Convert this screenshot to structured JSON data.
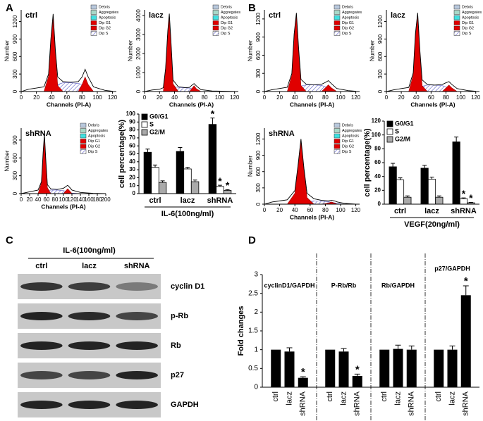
{
  "panels": [
    "A",
    "B",
    "C",
    "D"
  ],
  "chart_data": [
    {
      "type": "flow",
      "title": "ctrl",
      "xlabel": "Channels (PI-A)",
      "ylabel": "Number",
      "xlim": [
        0,
        125
      ],
      "xticks": [
        0,
        20,
        40,
        60,
        80,
        100,
        120
      ],
      "ylim": [
        0,
        1400
      ],
      "yticks": [
        0,
        300,
        600,
        900,
        1200
      ],
      "legend": [
        {
          "name": "Debris",
          "color": "#b8c8dc"
        },
        {
          "name": "Aggregates",
          "color": "#a8d8c8"
        },
        {
          "name": "Apoptosis",
          "color": "#40e0e0"
        },
        {
          "name": "Dip G1",
          "color": "#e00000"
        },
        {
          "name": "Dip G2",
          "color": "#e00000"
        },
        {
          "name": "Dip S",
          "color": "#6a6ad0"
        }
      ],
      "x": [
        0,
        10,
        20,
        30,
        36,
        39,
        42,
        45,
        48,
        55,
        65,
        75,
        80,
        84,
        88,
        95,
        110,
        120
      ],
      "total": [
        0,
        40,
        60,
        80,
        300,
        900,
        1330,
        700,
        250,
        170,
        160,
        170,
        250,
        380,
        250,
        80,
        20,
        5
      ],
      "g1": [
        null,
        null,
        null,
        0,
        260,
        850,
        1250,
        650,
        100,
        0,
        null,
        null,
        null,
        null,
        null,
        null,
        null,
        null
      ],
      "g2": [
        null,
        null,
        null,
        null,
        null,
        null,
        null,
        null,
        null,
        null,
        null,
        0,
        120,
        250,
        120,
        0,
        null,
        null
      ],
      "s": [
        null,
        null,
        null,
        null,
        null,
        0,
        40,
        80,
        120,
        150,
        150,
        140,
        120,
        80,
        30,
        0,
        null,
        null
      ]
    },
    {
      "type": "flow",
      "title": "lacz",
      "xlabel": "Channels (PI-A)",
      "ylabel": "Number",
      "xlim": [
        0,
        125
      ],
      "xticks": [
        0,
        20,
        40,
        60,
        80,
        100,
        120
      ],
      "ylim": [
        0,
        4300
      ],
      "yticks": [
        0,
        1000,
        2000,
        3000,
        4000
      ],
      "legend": [
        {
          "name": "Debris",
          "color": "#b8c8dc"
        },
        {
          "name": "Aggregates",
          "color": "#a8d8c8"
        },
        {
          "name": "Apoptosis",
          "color": "#40e0e0"
        },
        {
          "name": "Dip G1",
          "color": "#e00000"
        },
        {
          "name": "Dip G2",
          "color": "#e00000"
        },
        {
          "name": "Dip S",
          "color": "#6a6ad0"
        }
      ],
      "x": [
        0,
        10,
        20,
        25,
        28,
        31,
        33,
        35,
        38,
        45,
        55,
        60,
        63,
        66,
        69,
        75,
        90,
        120
      ],
      "total": [
        0,
        80,
        120,
        200,
        1200,
        3200,
        4100,
        2800,
        600,
        250,
        200,
        220,
        330,
        420,
        300,
        100,
        30,
        5
      ],
      "g1": [
        null,
        null,
        null,
        0,
        1100,
        3100,
        4000,
        2700,
        400,
        0,
        null,
        null,
        null,
        null,
        null,
        null,
        null,
        null
      ],
      "g2": [
        null,
        null,
        null,
        null,
        null,
        null,
        null,
        null,
        null,
        null,
        null,
        0,
        150,
        300,
        150,
        0,
        null,
        null
      ],
      "s": [
        null,
        null,
        null,
        null,
        null,
        0,
        100,
        200,
        250,
        220,
        190,
        180,
        150,
        100,
        50,
        0,
        null,
        null
      ]
    },
    {
      "type": "flow",
      "title": "shRNA",
      "xlabel": "Channels (PI-A)",
      "ylabel": "Number",
      "xlim": [
        0,
        200
      ],
      "xticks": [
        0,
        20,
        40,
        60,
        80,
        100,
        120,
        140,
        160,
        180,
        200
      ],
      "ylim": [
        0,
        1100
      ],
      "yticks": [
        0,
        300,
        600,
        900
      ],
      "legend": [
        {
          "name": "Debris",
          "color": "#b8c8dc"
        },
        {
          "name": "Aggregates",
          "color": "#a8d8c8"
        },
        {
          "name": "Apoptosis",
          "color": "#40e0e0"
        },
        {
          "name": "Dip G1",
          "color": "#e00000"
        },
        {
          "name": "Dip G2",
          "color": "#e00000"
        },
        {
          "name": "Dip S",
          "color": "#6a6ad0"
        }
      ],
      "x": [
        0,
        20,
        40,
        48,
        52,
        55,
        58,
        62,
        70,
        85,
        100,
        106,
        110,
        114,
        120,
        140,
        170,
        200
      ],
      "total": [
        0,
        30,
        60,
        200,
        700,
        1000,
        600,
        150,
        80,
        70,
        90,
        120,
        140,
        110,
        60,
        20,
        5,
        0
      ],
      "g1": [
        null,
        null,
        0,
        180,
        650,
        950,
        560,
        100,
        0,
        null,
        null,
        null,
        null,
        null,
        null,
        null,
        null,
        null
      ],
      "g2": [
        null,
        null,
        null,
        null,
        null,
        null,
        null,
        null,
        null,
        null,
        0,
        50,
        80,
        50,
        0,
        null,
        null,
        null
      ],
      "s": [
        null,
        null,
        null,
        null,
        0,
        20,
        40,
        50,
        60,
        60,
        50,
        40,
        30,
        20,
        10,
        0,
        null,
        null
      ]
    },
    {
      "type": "bar",
      "xlabel": "IL-6(100ng/ml)",
      "ylabel": "cell percentage(%)",
      "categories": [
        "ctrl",
        "lacz",
        "shRNA"
      ],
      "ylim": [
        0,
        100
      ],
      "yticks": [
        0,
        10,
        20,
        30,
        40,
        50,
        60,
        70,
        80,
        90,
        100
      ],
      "series": [
        {
          "name": "G0/G1",
          "color": "#000000",
          "values": [
            52,
            53,
            87
          ],
          "errors": [
            4,
            5,
            8
          ],
          "stars": [
            null,
            null,
            "*"
          ]
        },
        {
          "name": "S",
          "color": "#ffffff",
          "values": [
            33,
            31,
            9
          ],
          "errors": [
            3,
            2,
            1.5
          ],
          "stars": [
            null,
            null,
            "*"
          ]
        },
        {
          "name": "G2/M",
          "color": "#aaaaaa",
          "values": [
            14,
            15,
            4
          ],
          "errors": [
            2,
            2,
            1
          ],
          "stars": [
            null,
            null,
            "*"
          ]
        }
      ]
    },
    {
      "type": "flow",
      "title": "ctrl",
      "xlabel": "Channels (PI-A)",
      "ylabel": "Number",
      "xlim": [
        0,
        125
      ],
      "xticks": [
        0,
        20,
        40,
        60,
        80,
        100,
        120
      ],
      "ylim": [
        0,
        1350
      ],
      "yticks": [
        0,
        300,
        600,
        900,
        1200
      ],
      "legend": [
        {
          "name": "Debris",
          "color": "#b8c8dc"
        },
        {
          "name": "Aggregates",
          "color": "#a8d8c8"
        },
        {
          "name": "Apoptosis",
          "color": "#40e0e0"
        },
        {
          "name": "Dip G1",
          "color": "#e00000"
        },
        {
          "name": "Dip G2",
          "color": "#e00000"
        },
        {
          "name": "Dip S",
          "color": "#6a6ad0"
        }
      ],
      "x": [
        0,
        10,
        20,
        30,
        36,
        39,
        42,
        45,
        48,
        55,
        65,
        75,
        80,
        84,
        88,
        95,
        110,
        120
      ],
      "total": [
        0,
        30,
        50,
        70,
        300,
        950,
        1300,
        700,
        200,
        120,
        110,
        120,
        150,
        180,
        130,
        50,
        15,
        5
      ],
      "g1": [
        null,
        null,
        null,
        0,
        270,
        900,
        1250,
        650,
        100,
        0,
        null,
        null,
        null,
        null,
        null,
        null,
        null,
        null
      ],
      "g2": [
        null,
        null,
        null,
        null,
        null,
        null,
        null,
        null,
        null,
        null,
        null,
        0,
        60,
        110,
        60,
        0,
        null,
        null
      ],
      "s": [
        null,
        null,
        null,
        null,
        null,
        0,
        30,
        60,
        90,
        110,
        110,
        100,
        80,
        50,
        20,
        0,
        null,
        null
      ]
    },
    {
      "type": "flow",
      "title": "lacz",
      "xlabel": "Channels (PI-A)",
      "ylabel": "Number",
      "xlim": [
        0,
        125
      ],
      "xticks": [
        0,
        20,
        40,
        60,
        80,
        100,
        120
      ],
      "ylim": [
        0,
        1400
      ],
      "yticks": [
        0,
        300,
        600,
        900,
        1200
      ],
      "legend": [
        {
          "name": "Debris",
          "color": "#b8c8dc"
        },
        {
          "name": "Aggregates",
          "color": "#a8d8c8"
        },
        {
          "name": "Apoptosis",
          "color": "#40e0e0"
        },
        {
          "name": "Dip G1",
          "color": "#e00000"
        },
        {
          "name": "Dip G2",
          "color": "#e00000"
        },
        {
          "name": "Dip S",
          "color": "#6a6ad0"
        }
      ],
      "x": [
        0,
        10,
        20,
        30,
        36,
        39,
        42,
        45,
        48,
        55,
        65,
        75,
        80,
        84,
        88,
        95,
        110,
        120
      ],
      "total": [
        0,
        30,
        50,
        70,
        320,
        1000,
        1350,
        700,
        200,
        120,
        110,
        120,
        150,
        170,
        120,
        50,
        15,
        5
      ],
      "g1": [
        null,
        null,
        null,
        0,
        280,
        950,
        1300,
        650,
        100,
        0,
        null,
        null,
        null,
        null,
        null,
        null,
        null,
        null
      ],
      "g2": [
        null,
        null,
        null,
        null,
        null,
        null,
        null,
        null,
        null,
        null,
        null,
        0,
        60,
        110,
        60,
        0,
        null,
        null
      ],
      "s": [
        null,
        null,
        null,
        null,
        null,
        0,
        30,
        60,
        90,
        110,
        110,
        100,
        80,
        50,
        20,
        0,
        null,
        null
      ]
    },
    {
      "type": "flow",
      "title": "shRNA",
      "xlabel": "Channels (PI-A)",
      "ylabel": "Number",
      "xlim": [
        0,
        125
      ],
      "xticks": [
        0,
        20,
        40,
        60,
        80,
        100,
        120
      ],
      "ylim": [
        0,
        1400
      ],
      "yticks": [
        0,
        300,
        600,
        900,
        1200
      ],
      "legend": [
        {
          "name": "Debris",
          "color": "#b8c8dc"
        },
        {
          "name": "Aggregates",
          "color": "#a8d8c8"
        },
        {
          "name": "Apoptosis",
          "color": "#40e0e0"
        },
        {
          "name": "Dip G1",
          "color": "#e00000"
        },
        {
          "name": "Dip G2",
          "color": "#e00000"
        },
        {
          "name": "Dip S",
          "color": "#6a6ad0"
        }
      ],
      "x": [
        0,
        10,
        20,
        30,
        40,
        44,
        48,
        52,
        56,
        65,
        75,
        84,
        88,
        92,
        96,
        105,
        115,
        120
      ],
      "total": [
        0,
        40,
        60,
        80,
        250,
        700,
        1200,
        650,
        200,
        100,
        70,
        60,
        70,
        60,
        40,
        15,
        5,
        0
      ],
      "g1": [
        null,
        null,
        null,
        0,
        200,
        650,
        1150,
        600,
        120,
        0,
        null,
        null,
        null,
        null,
        null,
        null,
        null,
        null
      ],
      "g2": [
        null,
        null,
        null,
        null,
        null,
        null,
        null,
        null,
        null,
        null,
        0,
        20,
        40,
        20,
        0,
        null,
        null,
        null
      ],
      "s": [
        null,
        null,
        null,
        null,
        null,
        null,
        0,
        30,
        50,
        60,
        55,
        45,
        35,
        25,
        10,
        0,
        null,
        null
      ]
    },
    {
      "type": "bar",
      "xlabel": "VEGF(20ng/ml)",
      "ylabel": "cell percentage(%)",
      "categories": [
        "ctrl",
        "lacz",
        "shRNA"
      ],
      "ylim": [
        0,
        120
      ],
      "yticks": [
        0,
        20,
        40,
        60,
        80,
        100,
        120
      ],
      "series": [
        {
          "name": "G0/G1",
          "color": "#000000",
          "values": [
            54,
            52,
            90
          ],
          "errors": [
            5,
            4,
            7
          ],
          "stars": [
            null,
            null,
            null
          ]
        },
        {
          "name": "S",
          "color": "#ffffff",
          "values": [
            35,
            36,
            8
          ],
          "errors": [
            3,
            3,
            1
          ],
          "stars": [
            null,
            null,
            "*"
          ]
        },
        {
          "name": "G2/M",
          "color": "#aaaaaa",
          "values": [
            10,
            10,
            2
          ],
          "errors": [
            2,
            2,
            0.5
          ],
          "stars": [
            null,
            null,
            "*"
          ]
        }
      ]
    },
    {
      "type": "groups",
      "ylabel": "Fold changes",
      "ylim": [
        0,
        3
      ],
      "yticks": [
        0,
        0.5,
        1,
        1.5,
        2,
        2.5,
        3
      ],
      "color": "#000000",
      "groups": [
        {
          "title": "cyclinD1/GAPDH",
          "categories": [
            "ctrl",
            "lacz",
            "shRNA"
          ],
          "values": [
            1,
            0.95,
            0.25
          ],
          "errors": [
            0,
            0.1,
            0.03
          ],
          "stars": [
            null,
            null,
            "*"
          ]
        },
        {
          "title": "P-Rb/Rb",
          "categories": [
            "ctrl",
            "lacz",
            "shRNA"
          ],
          "values": [
            1,
            0.95,
            0.3
          ],
          "errors": [
            0,
            0.08,
            0.05
          ],
          "stars": [
            null,
            null,
            "*"
          ]
        },
        {
          "title": "Rb/GAPDH",
          "categories": [
            "ctrl",
            "lacz",
            "shRNA"
          ],
          "values": [
            1,
            1.02,
            1.0
          ],
          "errors": [
            0,
            0.1,
            0.1
          ],
          "stars": [
            null,
            null,
            null
          ]
        },
        {
          "title": "p27/GAPDH",
          "categories": [
            "ctrl",
            "lacz",
            "shRNA"
          ],
          "values": [
            1,
            1.0,
            2.45
          ],
          "errors": [
            0,
            0.1,
            0.25
          ],
          "stars": [
            null,
            null,
            "*"
          ]
        }
      ]
    }
  ],
  "blot": {
    "treatment": "IL-6(100ng/ml)",
    "lanes": [
      "ctrl",
      "lacz",
      "shRNA"
    ],
    "rows": [
      {
        "label": "cyclin D1",
        "intensity": [
          0.85,
          0.8,
          0.45
        ]
      },
      {
        "label": "p-Rb",
        "intensity": [
          0.95,
          0.9,
          0.75
        ]
      },
      {
        "label": "Rb",
        "intensity": [
          0.95,
          0.95,
          0.95
        ]
      },
      {
        "label": "p27",
        "intensity": [
          0.75,
          0.75,
          0.95
        ]
      },
      {
        "label": "GAPDH",
        "intensity": [
          0.95,
          0.95,
          0.95
        ]
      }
    ]
  }
}
